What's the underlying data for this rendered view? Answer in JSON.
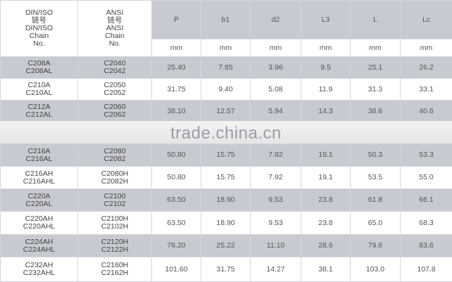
{
  "header": {
    "din": [
      "DIN/ISO",
      "链号",
      "DIN/ISO",
      "Chain",
      "No."
    ],
    "ansi": [
      "ANSI",
      "链号",
      "ANSI",
      "Chain",
      "No."
    ],
    "cols": [
      "P",
      "b1",
      "d2",
      "L3",
      "L",
      "Lc"
    ],
    "unit": "mm"
  },
  "rows_top": [
    {
      "din": [
        "C208A",
        "C208AL"
      ],
      "ansi": [
        "C2040",
        "C2042"
      ],
      "v": [
        "25.40",
        "7.85",
        "3.96",
        "9.5",
        "25.1",
        "26.2"
      ]
    },
    {
      "din": [
        "C210A",
        "C210AL"
      ],
      "ansi": [
        "C2050",
        "C2052"
      ],
      "v": [
        "31.75",
        "9.40",
        "5.08",
        "11.9",
        "31.3",
        "33.1"
      ]
    },
    {
      "din": [
        "C212A",
        "C212AL"
      ],
      "ansi": [
        "C2060",
        "C2062"
      ],
      "v": [
        "38.10",
        "12.57",
        "5.94",
        "14.3",
        "38.6",
        "40.6"
      ]
    }
  ],
  "rows_bottom": [
    {
      "din": [
        "C216A",
        "C216AL"
      ],
      "ansi": [
        "C2080",
        "C2082"
      ],
      "v": [
        "50.80",
        "15.75",
        "7.92",
        "19.1",
        "50.3",
        "53.3"
      ]
    },
    {
      "din": [
        "C216AH",
        "C216AHL"
      ],
      "ansi": [
        "C2080H",
        "C2082H"
      ],
      "v": [
        "50.80",
        "15.75",
        "7.92",
        "19.1",
        "53.5",
        "55.0"
      ]
    },
    {
      "din": [
        "C220A",
        "C220AL"
      ],
      "ansi": [
        "C2100",
        "C2102"
      ],
      "v": [
        "63.50",
        "18.90",
        "9.53",
        "23.8",
        "61.8",
        "66.1"
      ]
    },
    {
      "din": [
        "C220AH",
        "C220AHL"
      ],
      "ansi": [
        "C2100H",
        "C2102H"
      ],
      "v": [
        "63.50",
        "18.90",
        "9.53",
        "23.8",
        "65.0",
        "68.3"
      ]
    },
    {
      "din": [
        "C224AH",
        "C224AHL"
      ],
      "ansi": [
        "C2120H",
        "C2122H"
      ],
      "v": [
        "76.20",
        "25.22",
        "11.10",
        "28.6",
        "79.6",
        "83.6"
      ]
    },
    {
      "din": [
        "C232AH",
        "C232AHL"
      ],
      "ansi": [
        "C2160H",
        "C2162H"
      ],
      "v": [
        "101.60",
        "31.75",
        "14.27",
        "38.1",
        "103.0",
        "107.8"
      ]
    }
  ],
  "watermark": "trade.china.cn"
}
